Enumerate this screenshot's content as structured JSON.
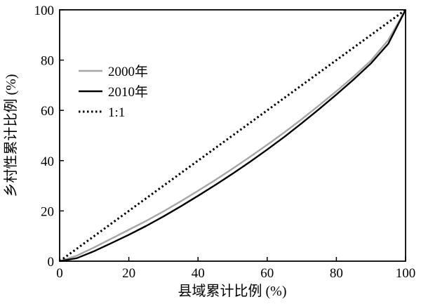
{
  "chart_data": {
    "type": "line",
    "title": "",
    "xlabel": "县域累计比例 (%)",
    "ylabel": "乡村性累计比例 (%)",
    "xlim": [
      0,
      100
    ],
    "ylim": [
      0,
      100
    ],
    "xticks": [
      "0",
      "20",
      "40",
      "60",
      "80",
      "100"
    ],
    "yticks": [
      "0",
      "20",
      "40",
      "60",
      "80",
      "100"
    ],
    "grid": false,
    "legend_position": "upper-left",
    "series": [
      {
        "name": "2000年",
        "color": "#a6a6a6",
        "style": "solid",
        "x": [
          0,
          5,
          10,
          15,
          20,
          25,
          30,
          35,
          40,
          45,
          50,
          55,
          60,
          65,
          70,
          75,
          80,
          85,
          90,
          95,
          100
        ],
        "y": [
          0,
          2.2,
          5.5,
          9.0,
          12.5,
          16.0,
          19.8,
          23.8,
          28.0,
          32.3,
          36.8,
          41.5,
          46.3,
          51.3,
          56.5,
          62.0,
          67.6,
          73.5,
          79.8,
          88.0,
          100
        ]
      },
      {
        "name": "2010年",
        "color": "#000000",
        "style": "solid",
        "x": [
          0,
          5,
          10,
          15,
          20,
          25,
          30,
          35,
          40,
          45,
          50,
          55,
          60,
          65,
          70,
          75,
          80,
          85,
          90,
          95,
          100
        ],
        "y": [
          0,
          1.2,
          4.0,
          7.2,
          10.5,
          14.0,
          17.8,
          21.8,
          26.0,
          30.3,
          34.8,
          39.5,
          44.4,
          49.5,
          54.9,
          60.5,
          66.3,
          72.3,
          78.7,
          86.5,
          100
        ]
      },
      {
        "name": "1:1",
        "color": "#000000",
        "style": "dotted",
        "x": [
          0,
          100
        ],
        "y": [
          0,
          100
        ]
      }
    ]
  }
}
